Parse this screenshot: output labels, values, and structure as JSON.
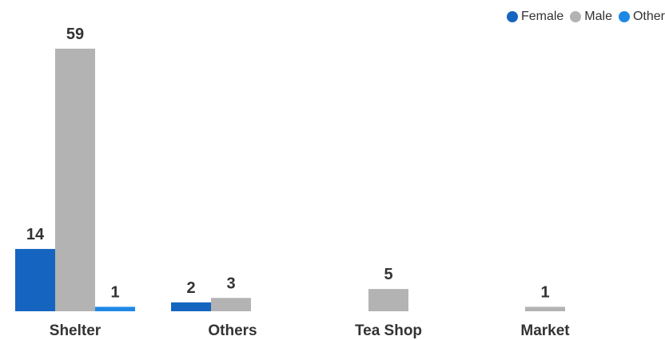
{
  "chart_data": {
    "type": "bar",
    "categories": [
      "Shelter",
      "Others",
      "Tea Shop",
      "Market"
    ],
    "series": [
      {
        "name": "Female",
        "color": "#1565C0",
        "values": [
          14,
          2,
          null,
          null
        ]
      },
      {
        "name": "Male",
        "color": "#B3B3B3",
        "values": [
          59,
          3,
          5,
          1
        ]
      },
      {
        "name": "Other",
        "color": "#1E88E5",
        "values": [
          1,
          null,
          null,
          null
        ]
      }
    ],
    "ylim": [
      0,
      59
    ],
    "grid": false,
    "legend_position": "top-right",
    "data_labels": true
  }
}
